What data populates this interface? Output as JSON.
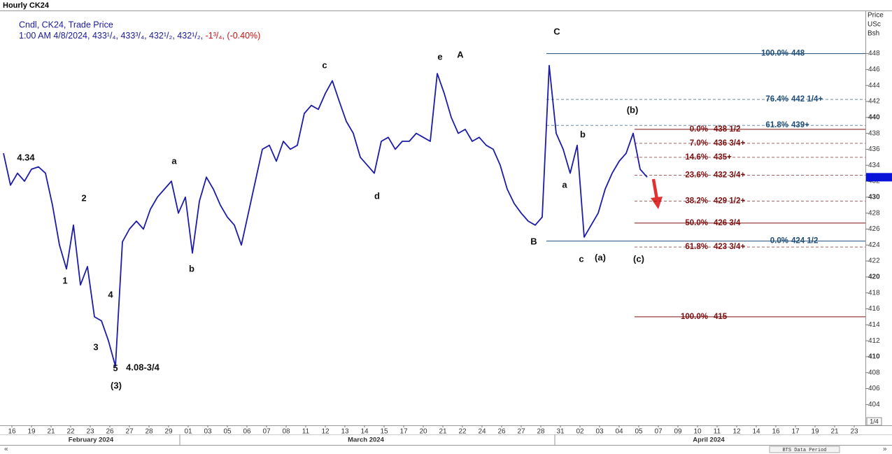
{
  "header": {
    "title": "Hourly CK24"
  },
  "chart_data": {
    "type": "line",
    "legend_line1": "Cndl, CK24, Trade Price",
    "legend_line2": "1:00 AM 4/8/2024, 433¹/₄, 433³/₄, 432¹/₂, 432¹/₂,",
    "legend_change": "-1³/₄, (-0.40%)",
    "axis_title": [
      "Price",
      "USc",
      "Bsh"
    ],
    "color": "#1c1ca8",
    "values": [
      435.5,
      431.5,
      433,
      432,
      433.5,
      433.8,
      433,
      429,
      424,
      421,
      426.5,
      419,
      421.3,
      415,
      414.5,
      412,
      408.8,
      424.4,
      426,
      427,
      426,
      428.5,
      430,
      431,
      432,
      428,
      430,
      423,
      429.5,
      432.5,
      431,
      429,
      427.5,
      426.5,
      424,
      428,
      432,
      436,
      436.5,
      434.5,
      437,
      436,
      436.5,
      440.5,
      441.5,
      441,
      443,
      444.6,
      442,
      439.5,
      438,
      435,
      434,
      433,
      437,
      437.5,
      436,
      437,
      437,
      438,
      437.5,
      437,
      445.5,
      443,
      440,
      438,
      438.5,
      437,
      437.5,
      436.5,
      436,
      434,
      431,
      429.2,
      428,
      427,
      426.5,
      427.5,
      446.5,
      438,
      436,
      433,
      436.5,
      425,
      426.5,
      428,
      431,
      433,
      434.5,
      435.5,
      438,
      433.5,
      432.5
    ],
    "xtick_labels": [
      "16",
      "19",
      "21",
      "22",
      "23",
      "26",
      "27",
      "28",
      "29",
      "01",
      "03",
      "05",
      "06",
      "07",
      "08",
      "11",
      "12",
      "13",
      "14",
      "15",
      "17",
      "20",
      "21",
      "22",
      "24",
      "26",
      "27",
      "28",
      "31",
      "02",
      "03",
      "04",
      "05",
      "07",
      "09",
      "10",
      "11",
      "12",
      "14",
      "16",
      "17",
      "19",
      "21",
      "23"
    ],
    "months": [
      "February 2024",
      "March 2024",
      "April 2024"
    ],
    "ylim": [
      401.4,
      453.4
    ],
    "yticks": [
      404,
      406,
      408,
      410,
      412,
      414,
      416,
      418,
      420,
      422,
      424,
      426,
      428,
      430,
      432,
      434,
      436,
      438,
      440,
      442,
      444,
      446,
      448
    ],
    "annotations": [
      "4.34",
      "2",
      "1",
      "4",
      "3",
      "5",
      "4.08-3/4",
      "(3)",
      "a",
      "b",
      "c",
      "d",
      "e",
      "A",
      "C",
      "B",
      "b",
      "a",
      "c",
      "(a)",
      "(b)",
      "(c)"
    ],
    "fib_sets": [
      {
        "color": "#1f4e79",
        "levels": [
          {
            "percent": {
              "value": 100,
              "label": "100.0%"
            },
            "price": 448,
            "style": "solid"
          },
          {
            "percent": {
              "value": 76.4,
              "label": "76.4%"
            },
            "price": {
              "value": 442.25,
              "label": "442 1/4+"
            },
            "style": "dashed"
          },
          {
            "percent": {
              "value": 61.8,
              "label": "61.8%"
            },
            "price": {
              "value": 439,
              "label": "439+"
            },
            "style": "dashed"
          },
          {
            "percent": {
              "value": 0,
              "label": "0.0%"
            },
            "price": {
              "value": 424.5,
              "label": "424 1/2"
            },
            "style": "solid"
          }
        ]
      },
      {
        "color": "#7b1010",
        "levels": [
          {
            "percent": {
              "value": 0,
              "label": "0.0%"
            },
            "price": {
              "value": 438.5,
              "label": "438 1/2"
            },
            "style": "solid"
          },
          {
            "percent": {
              "value": 7,
              "label": "7.0%"
            },
            "price": {
              "value": 436.75,
              "label": "436 3/4+"
            },
            "style": "dashed"
          },
          {
            "percent": {
              "value": 14.6,
              "label": "14.6%"
            },
            "price": {
              "value": 435,
              "label": "435+"
            },
            "style": "dashed"
          },
          {
            "percent": {
              "value": 23.6,
              "label": "23.6%"
            },
            "price": {
              "value": 432.75,
              "label": "432 3/4+"
            },
            "style": "dashed"
          },
          {
            "percent": {
              "value": 38.2,
              "label": "38.2%"
            },
            "price": {
              "value": 429.5,
              "label": "429 1/2+"
            },
            "style": "dashed"
          },
          {
            "percent": {
              "value": 50,
              "label": "50.0%"
            },
            "price": {
              "value": 426.75,
              "label": "426 3/4"
            },
            "style": "solid"
          },
          {
            "percent": {
              "value": 61.8,
              "label": "61.8%"
            },
            "price": {
              "value": 423.75,
              "label": "423 3/4+"
            },
            "style": "dashed"
          },
          {
            "percent": {
              "value": 100,
              "label": "100.0%"
            },
            "price": 415,
            "style": "solid"
          }
        ]
      }
    ],
    "scale_label": "1/4",
    "footer": "BTS Data Period"
  }
}
